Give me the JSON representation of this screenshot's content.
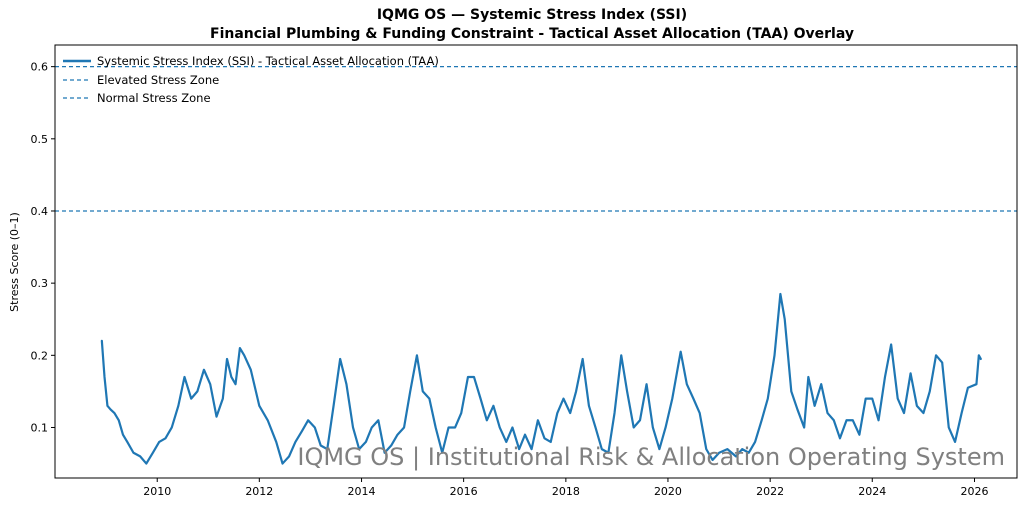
{
  "chart_data": {
    "type": "line",
    "title": "IQMG OS — Systemic Stress Index (SSI)",
    "subtitle": "Financial Plumbing & Funding Constraint - Tactical Asset Allocation (TAA) Overlay",
    "xlabel": "",
    "ylabel": "Stress Score (0–1)",
    "xlim": [
      "2008-01-01",
      "2026-11-01"
    ],
    "ylim": [
      0.03,
      0.63
    ],
    "x_ticks": [
      "2010",
      "2012",
      "2014",
      "2016",
      "2018",
      "2020",
      "2022",
      "2024",
      "2026"
    ],
    "y_ticks": [
      "0.1",
      "0.2",
      "0.3",
      "0.4",
      "0.5",
      "0.6"
    ],
    "grid": false,
    "legend_position": "top-left",
    "series": [
      {
        "name": "Systemic Stress Index (SSI) - Tactical Asset Allocation (TAA)",
        "color": "#1f77b4",
        "points": [
          [
            "2008-12-01",
            0.22
          ],
          [
            "2008-12-20",
            0.17
          ],
          [
            "2009-01-10",
            0.13
          ],
          [
            "2009-02-01",
            0.125
          ],
          [
            "2009-03-01",
            0.12
          ],
          [
            "2009-04-01",
            0.11
          ],
          [
            "2009-05-01",
            0.09
          ],
          [
            "2009-06-01",
            0.08
          ],
          [
            "2009-07-15",
            0.065
          ],
          [
            "2009-09-01",
            0.06
          ],
          [
            "2009-10-15",
            0.05
          ],
          [
            "2009-12-01",
            0.065
          ],
          [
            "2010-01-15",
            0.08
          ],
          [
            "2010-03-01",
            0.085
          ],
          [
            "2010-04-15",
            0.1
          ],
          [
            "2010-06-01",
            0.13
          ],
          [
            "2010-07-15",
            0.17
          ],
          [
            "2010-09-01",
            0.14
          ],
          [
            "2010-10-15",
            0.15
          ],
          [
            "2010-12-01",
            0.18
          ],
          [
            "2011-01-15",
            0.16
          ],
          [
            "2011-03-01",
            0.115
          ],
          [
            "2011-04-15",
            0.14
          ],
          [
            "2011-05-15",
            0.195
          ],
          [
            "2011-06-15",
            0.17
          ],
          [
            "2011-07-15",
            0.16
          ],
          [
            "2011-08-15",
            0.21
          ],
          [
            "2011-09-15",
            0.2
          ],
          [
            "2011-11-01",
            0.18
          ],
          [
            "2012-01-01",
            0.13
          ],
          [
            "2012-03-01",
            0.11
          ],
          [
            "2012-05-01",
            0.08
          ],
          [
            "2012-06-15",
            0.05
          ],
          [
            "2012-08-01",
            0.06
          ],
          [
            "2012-09-15",
            0.08
          ],
          [
            "2012-11-01",
            0.095
          ],
          [
            "2012-12-15",
            0.11
          ],
          [
            "2013-02-01",
            0.1
          ],
          [
            "2013-03-15",
            0.075
          ],
          [
            "2013-05-01",
            0.07
          ],
          [
            "2013-06-15",
            0.13
          ],
          [
            "2013-08-01",
            0.195
          ],
          [
            "2013-09-15",
            0.16
          ],
          [
            "2013-11-01",
            0.1
          ],
          [
            "2013-12-15",
            0.07
          ],
          [
            "2014-02-01",
            0.08
          ],
          [
            "2014-03-15",
            0.1
          ],
          [
            "2014-05-01",
            0.11
          ],
          [
            "2014-06-15",
            0.065
          ],
          [
            "2014-08-01",
            0.075
          ],
          [
            "2014-09-15",
            0.09
          ],
          [
            "2014-11-01",
            0.1
          ],
          [
            "2014-12-15",
            0.15
          ],
          [
            "2015-02-01",
            0.2
          ],
          [
            "2015-03-15",
            0.15
          ],
          [
            "2015-05-01",
            0.14
          ],
          [
            "2015-06-15",
            0.1
          ],
          [
            "2015-08-01",
            0.065
          ],
          [
            "2015-09-15",
            0.1
          ],
          [
            "2015-11-01",
            0.1
          ],
          [
            "2015-12-15",
            0.12
          ],
          [
            "2016-02-01",
            0.17
          ],
          [
            "2016-03-15",
            0.17
          ],
          [
            "2016-05-01",
            0.14
          ],
          [
            "2016-06-15",
            0.11
          ],
          [
            "2016-08-01",
            0.13
          ],
          [
            "2016-09-15",
            0.1
          ],
          [
            "2016-11-01",
            0.08
          ],
          [
            "2016-12-15",
            0.1
          ],
          [
            "2017-02-01",
            0.07
          ],
          [
            "2017-03-15",
            0.09
          ],
          [
            "2017-05-01",
            0.07
          ],
          [
            "2017-06-15",
            0.11
          ],
          [
            "2017-08-01",
            0.085
          ],
          [
            "2017-09-15",
            0.08
          ],
          [
            "2017-11-01",
            0.12
          ],
          [
            "2017-12-15",
            0.14
          ],
          [
            "2018-02-01",
            0.12
          ],
          [
            "2018-03-15",
            0.15
          ],
          [
            "2018-05-01",
            0.195
          ],
          [
            "2018-06-15",
            0.13
          ],
          [
            "2018-08-01",
            0.1
          ],
          [
            "2018-09-15",
            0.07
          ],
          [
            "2018-11-01",
            0.065
          ],
          [
            "2018-12-15",
            0.12
          ],
          [
            "2019-02-01",
            0.2
          ],
          [
            "2019-03-15",
            0.15
          ],
          [
            "2019-05-01",
            0.1
          ],
          [
            "2019-06-15",
            0.11
          ],
          [
            "2019-08-01",
            0.16
          ],
          [
            "2019-09-15",
            0.1
          ],
          [
            "2019-11-01",
            0.07
          ],
          [
            "2019-12-15",
            0.1
          ],
          [
            "2020-02-01",
            0.14
          ],
          [
            "2020-04-01",
            0.205
          ],
          [
            "2020-05-15",
            0.16
          ],
          [
            "2020-07-01",
            0.14
          ],
          [
            "2020-08-15",
            0.12
          ],
          [
            "2020-10-01",
            0.07
          ],
          [
            "2020-11-15",
            0.055
          ],
          [
            "2021-01-01",
            0.065
          ],
          [
            "2021-03-01",
            0.07
          ],
          [
            "2021-05-01",
            0.06
          ],
          [
            "2021-06-15",
            0.07
          ],
          [
            "2021-08-01",
            0.065
          ],
          [
            "2021-09-15",
            0.08
          ],
          [
            "2021-11-01",
            0.11
          ],
          [
            "2021-12-15",
            0.14
          ],
          [
            "2022-02-01",
            0.2
          ],
          [
            "2022-03-15",
            0.285
          ],
          [
            "2022-04-15",
            0.25
          ],
          [
            "2022-06-01",
            0.15
          ],
          [
            "2022-07-15",
            0.125
          ],
          [
            "2022-09-01",
            0.1
          ],
          [
            "2022-10-01",
            0.17
          ],
          [
            "2022-11-15",
            0.13
          ],
          [
            "2023-01-01",
            0.16
          ],
          [
            "2023-02-15",
            0.12
          ],
          [
            "2023-04-01",
            0.11
          ],
          [
            "2023-05-15",
            0.085
          ],
          [
            "2023-07-01",
            0.11
          ],
          [
            "2023-08-15",
            0.11
          ],
          [
            "2023-10-01",
            0.09
          ],
          [
            "2023-11-15",
            0.14
          ],
          [
            "2024-01-01",
            0.14
          ],
          [
            "2024-02-15",
            0.11
          ],
          [
            "2024-04-01",
            0.17
          ],
          [
            "2024-05-15",
            0.215
          ],
          [
            "2024-07-01",
            0.14
          ],
          [
            "2024-08-15",
            0.12
          ],
          [
            "2024-10-01",
            0.175
          ],
          [
            "2024-11-15",
            0.13
          ],
          [
            "2025-01-01",
            0.12
          ],
          [
            "2025-02-15",
            0.15
          ],
          [
            "2025-04-01",
            0.2
          ],
          [
            "2025-05-15",
            0.19
          ],
          [
            "2025-07-01",
            0.1
          ],
          [
            "2025-08-15",
            0.08
          ],
          [
            "2025-10-01",
            0.12
          ],
          [
            "2025-11-15",
            0.155
          ],
          [
            "2026-01-15",
            0.16
          ],
          [
            "2026-02-01",
            0.2
          ],
          [
            "2026-02-15",
            0.195
          ]
        ]
      }
    ],
    "reference_lines": [
      {
        "name": "Elevated Stress Zone",
        "y": 0.6,
        "color": "#1f77b4",
        "style": "dashed"
      },
      {
        "name": "Normal Stress Zone",
        "y": 0.4,
        "color": "#1f77b4",
        "style": "dashed"
      }
    ],
    "watermark": "IQMG OS | Institutional Risk & Allocation Operating System"
  }
}
